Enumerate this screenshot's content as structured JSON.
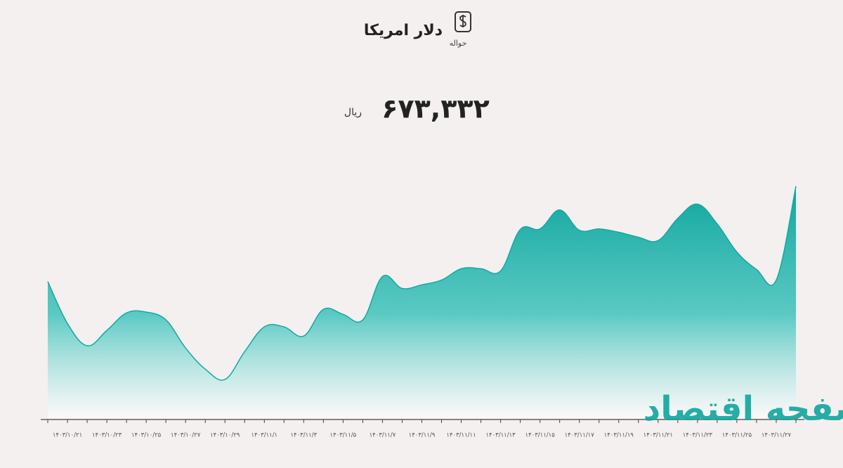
{
  "chart_data": {
    "type": "area",
    "title": "دلار امریکا",
    "subtitle": "حواله",
    "headline_value": "۶۷۳,۳۳۲",
    "headline_unit": "ریال",
    "watermark": "صفحه اقتصاد",
    "categories": [
      null,
      "۱۴۰۳/۱۰/۲۱",
      null,
      "۱۴۰۳/۱۰/۲۳",
      null,
      "۱۴۰۳/۱۰/۲۵",
      null,
      "۱۴۰۳/۱۰/۲۷",
      null,
      "۱۴۰۳/۱۰/۲۹",
      null,
      "۱۴۰۳/۱۱/۱",
      null,
      "۱۴۰۳/۱۱/۳",
      null,
      "۱۴۰۳/۱۱/۵",
      null,
      "۱۴۰۳/۱۱/۷",
      null,
      "۱۴۰۳/۱۱/۹",
      null,
      "۱۴۰۳/۱۱/۱۱",
      null,
      "۱۴۰۳/۱۱/۱۳",
      null,
      "۱۴۰۳/۱۱/۱۵",
      null,
      "۱۴۰۳/۱۱/۱۷",
      null,
      "۱۴۰۳/۱۱/۱۹",
      null,
      "۱۴۰۳/۱۱/۲۱",
      null,
      "۱۴۰۳/۱۱/۲۳",
      null,
      "۱۴۰۳/۱۱/۲۵",
      null,
      "۱۴۰۳/۱۱/۲۷",
      null
    ],
    "values": [
      639100,
      624000,
      616000,
      621500,
      627800,
      628100,
      625300,
      615200,
      607600,
      603900,
      613900,
      622800,
      622800,
      619500,
      629100,
      627300,
      625300,
      640900,
      636600,
      637900,
      639600,
      643700,
      643700,
      642900,
      657800,
      658000,
      664800,
      657500,
      658000,
      656800,
      655000,
      653800,
      661800,
      666900,
      659800,
      649700,
      643400,
      639600,
      673332
    ],
    "color": "#12aaa2",
    "ylim": [
      590000,
      673332
    ]
  }
}
